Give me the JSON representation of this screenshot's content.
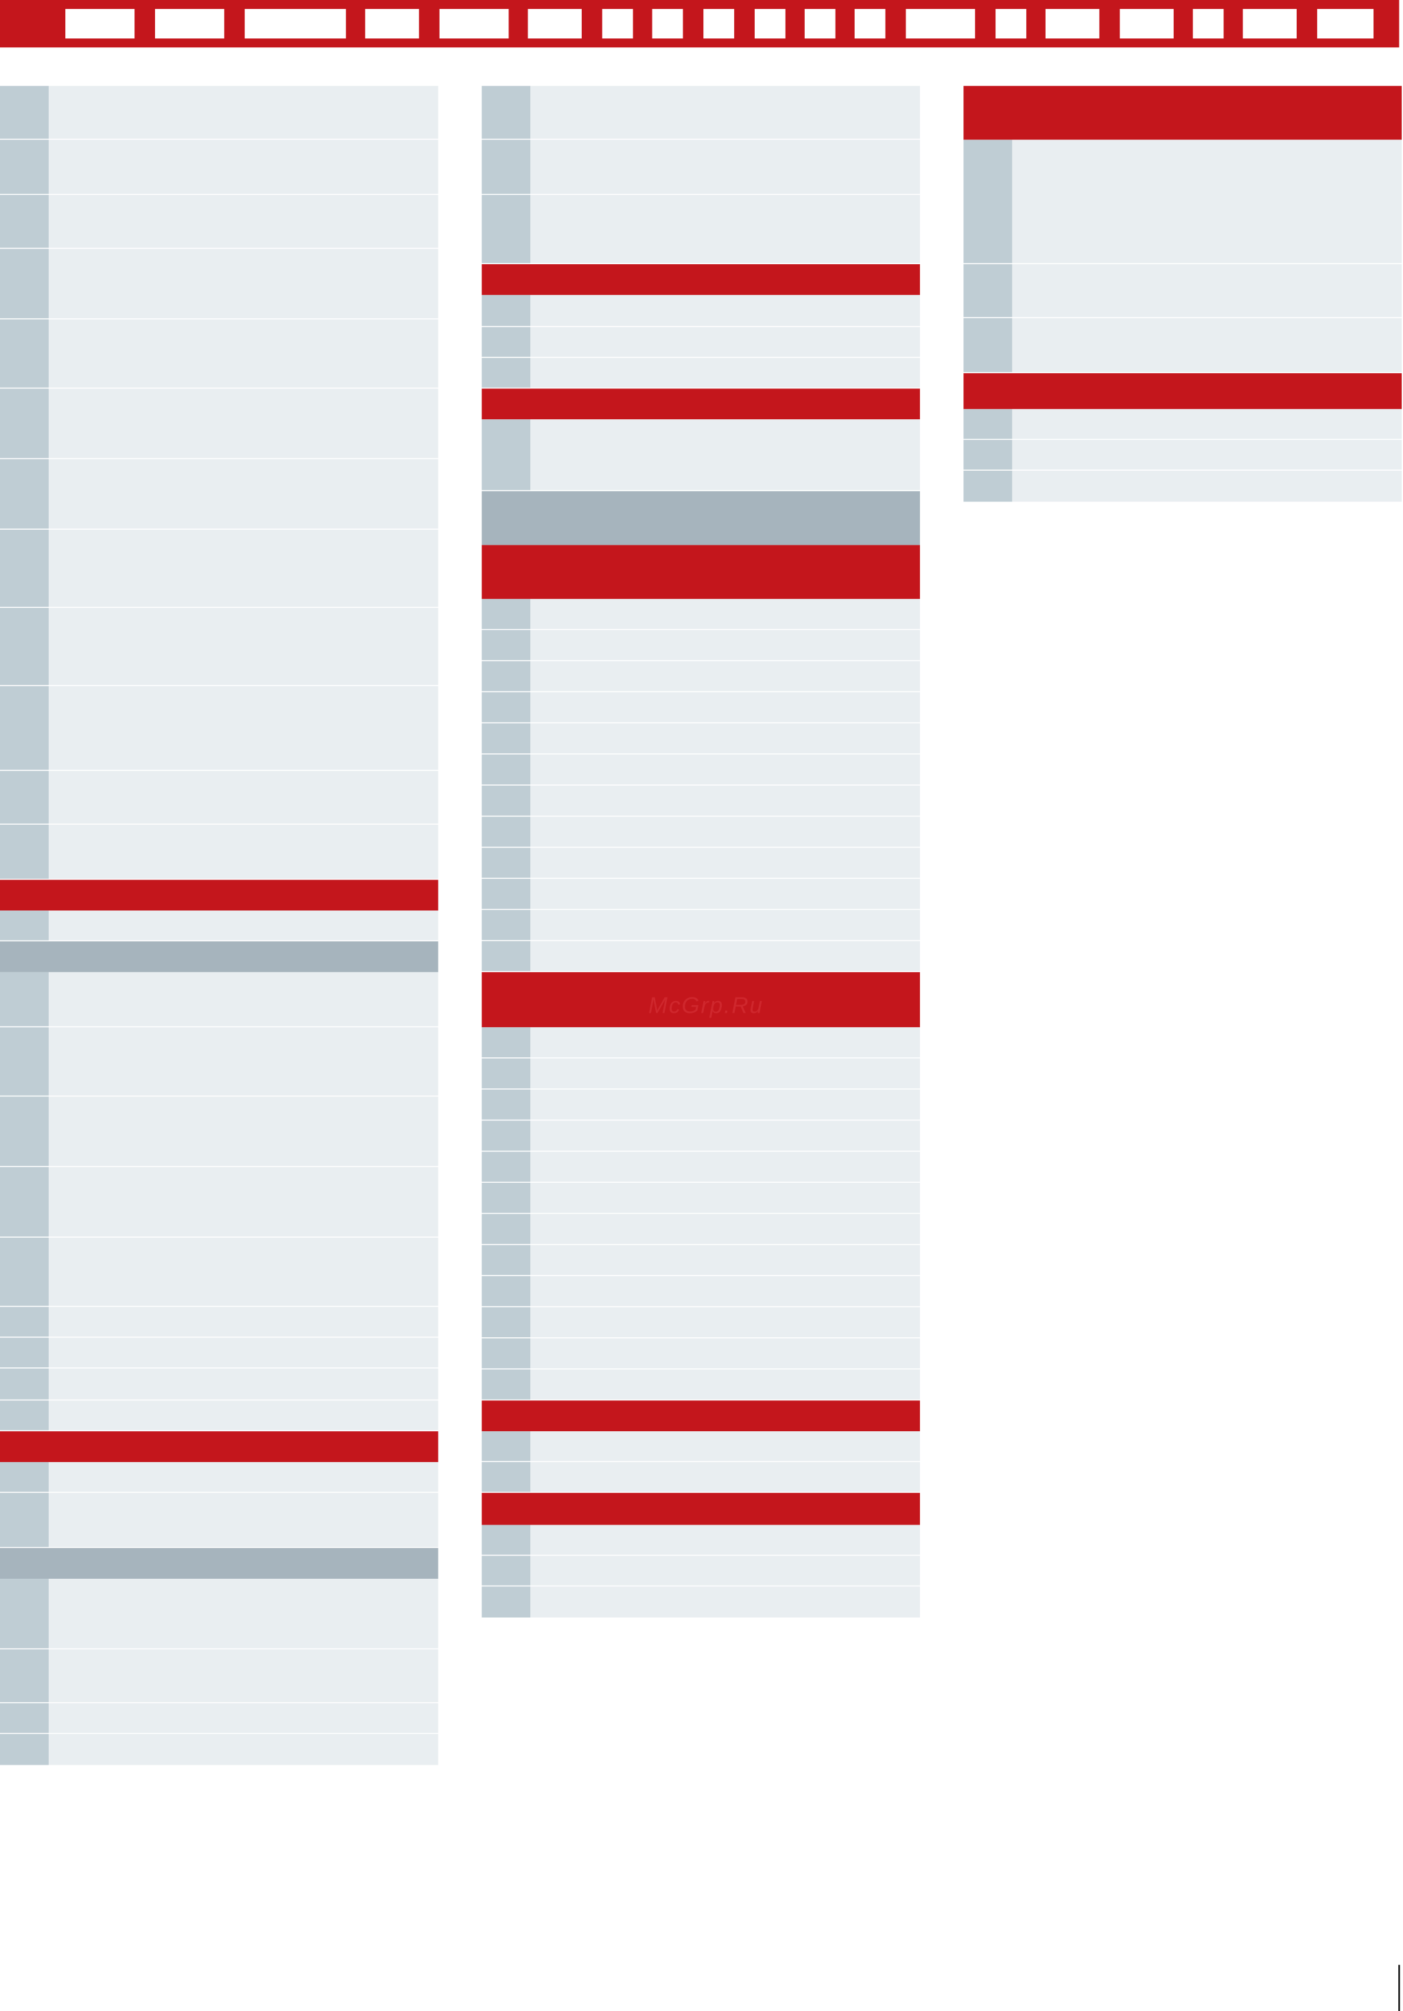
{
  "watermark": "McGrp.Ru"
}
